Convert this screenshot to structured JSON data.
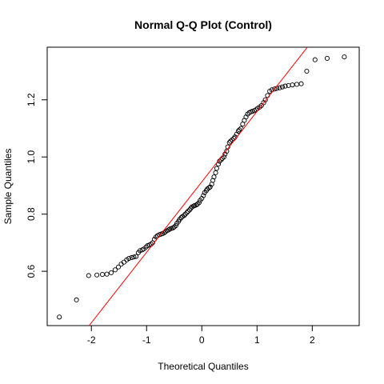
{
  "chart_data": {
    "type": "scatter",
    "title": "Normal Q-Q Plot (Control)",
    "xlabel": "Theoretical Quantiles",
    "ylabel": "Sample Quantiles",
    "xlim": [
      -2.8,
      2.85
    ],
    "ylim": [
      0.41,
      1.384
    ],
    "xticks": [
      -2,
      -1,
      0,
      1,
      2
    ],
    "yticks": [
      0.6,
      0.8,
      1.0,
      1.2
    ],
    "xtick_labels": [
      "-2",
      "-1",
      "0",
      "1",
      "2"
    ],
    "ytick_labels": [
      "0.6",
      "0.8",
      "1.0",
      "1.2"
    ],
    "grid": false,
    "legend": false,
    "reference_line": {
      "intercept": 0.913,
      "slope": 0.2465,
      "color": "#ff0000"
    },
    "series": [
      {
        "marker": "open-circle",
        "color": "#000000",
        "x": [
          -2.58,
          -2.27,
          -2.05,
          -1.9,
          -1.8,
          -1.72,
          -1.64,
          -1.57,
          -1.51,
          -1.46,
          -1.41,
          -1.36,
          -1.32,
          -1.27,
          -1.23,
          -1.19,
          -1.15,
          -1.12,
          -1.08,
          -1.05,
          -1.01,
          -0.98,
          -0.95,
          -0.92,
          -0.89,
          -0.86,
          -0.83,
          -0.8,
          -0.77,
          -0.74,
          -0.71,
          -0.68,
          -0.66,
          -0.63,
          -0.6,
          -0.58,
          -0.55,
          -0.52,
          -0.5,
          -0.47,
          -0.45,
          -0.42,
          -0.4,
          -0.37,
          -0.35,
          -0.32,
          -0.3,
          -0.27,
          -0.25,
          -0.22,
          -0.2,
          -0.18,
          -0.15,
          -0.13,
          -0.1,
          -0.08,
          -0.05,
          -0.03,
          0.0,
          0.03,
          0.05,
          0.08,
          0.1,
          0.13,
          0.15,
          0.18,
          0.2,
          0.22,
          0.25,
          0.27,
          0.3,
          0.32,
          0.35,
          0.37,
          0.4,
          0.42,
          0.45,
          0.47,
          0.5,
          0.52,
          0.55,
          0.58,
          0.6,
          0.63,
          0.66,
          0.68,
          0.71,
          0.74,
          0.77,
          0.8,
          0.83,
          0.86,
          0.89,
          0.92,
          0.95,
          0.98,
          1.01,
          1.05,
          1.08,
          1.12,
          1.15,
          1.19,
          1.23,
          1.27,
          1.32,
          1.36,
          1.41,
          1.46,
          1.51,
          1.57,
          1.64,
          1.72,
          1.8,
          1.9,
          2.05,
          2.27,
          2.58
        ],
        "y": [
          0.44,
          0.5,
          0.585,
          0.587,
          0.589,
          0.59,
          0.595,
          0.605,
          0.615,
          0.625,
          0.632,
          0.64,
          0.645,
          0.648,
          0.65,
          0.652,
          0.665,
          0.672,
          0.675,
          0.678,
          0.685,
          0.69,
          0.692,
          0.695,
          0.7,
          0.712,
          0.72,
          0.725,
          0.728,
          0.73,
          0.732,
          0.735,
          0.738,
          0.742,
          0.745,
          0.748,
          0.75,
          0.752,
          0.755,
          0.76,
          0.768,
          0.775,
          0.782,
          0.788,
          0.792,
          0.795,
          0.8,
          0.805,
          0.81,
          0.815,
          0.82,
          0.825,
          0.828,
          0.83,
          0.832,
          0.835,
          0.84,
          0.848,
          0.855,
          0.865,
          0.875,
          0.882,
          0.888,
          0.892,
          0.895,
          0.905,
          0.918,
          0.93,
          0.945,
          0.96,
          0.975,
          0.985,
          0.99,
          0.995,
          1.0,
          1.01,
          1.02,
          1.035,
          1.05,
          1.055,
          1.06,
          1.065,
          1.07,
          1.08,
          1.09,
          1.095,
          1.1,
          1.115,
          1.128,
          1.14,
          1.15,
          1.155,
          1.158,
          1.16,
          1.162,
          1.165,
          1.17,
          1.175,
          1.18,
          1.19,
          1.2,
          1.215,
          1.23,
          1.235,
          1.238,
          1.24,
          1.242,
          1.245,
          1.248,
          1.25,
          1.252,
          1.254,
          1.256,
          1.3,
          1.34,
          1.345,
          1.35
        ]
      }
    ]
  }
}
